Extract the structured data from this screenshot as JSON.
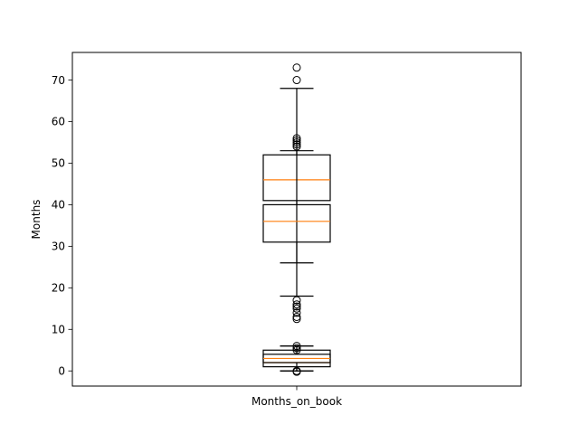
{
  "chart_data": {
    "type": "boxplot",
    "xlabel": "",
    "ylabel": "Months",
    "ylim": [
      -3.65,
      76.65
    ],
    "yticks": [
      0,
      10,
      20,
      30,
      40,
      50,
      60,
      70
    ],
    "category": "Months_on_book",
    "grid": false,
    "boxes": [
      {
        "whislo": 26,
        "q1": 41,
        "med": 46,
        "q3": 52,
        "whishi": 68,
        "fliers": [
          73,
          70,
          56,
          55.5,
          55,
          54.5,
          54
        ]
      },
      {
        "whislo": 18,
        "q1": 31,
        "med": 36,
        "q3": 40,
        "whishi": 53,
        "fliers": [
          17,
          16,
          15.5,
          15,
          14,
          13,
          12.5
        ]
      },
      {
        "whislo": 0,
        "q1": 1,
        "med": 2,
        "q3": 5,
        "whishi": 6,
        "fliers": []
      },
      {
        "whislo": 0,
        "q1": 2,
        "med": 3,
        "q3": 4,
        "whishi": 6,
        "fliers": [
          6,
          5.5,
          5,
          0,
          -0.2
        ]
      }
    ],
    "colors": {
      "box": "#000000",
      "median": "#ff7f0e",
      "flier": "#000000"
    }
  }
}
